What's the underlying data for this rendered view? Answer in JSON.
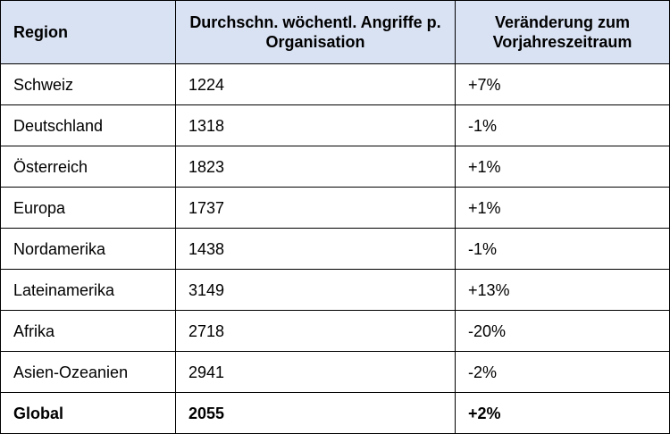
{
  "table": {
    "headers": {
      "region": "Region",
      "attacks": "Durchschn. wöchentl. Angriffe p. Organisation",
      "change": "Veränderung zum Vorjahreszeitraum"
    },
    "rows": [
      {
        "region": "Schweiz",
        "attacks": "1224",
        "change": "+7%"
      },
      {
        "region": "Deutschland",
        "attacks": "1318",
        "change": "-1%"
      },
      {
        "region": "Österreich",
        "attacks": "1823",
        "change": "+1%"
      },
      {
        "region": "Europa",
        "attacks": "1737",
        "change": "+1%"
      },
      {
        "region": "Nordamerika",
        "attacks": "1438",
        "change": "-1%"
      },
      {
        "region": "Lateinamerika",
        "attacks": "3149",
        "change": "+13%"
      },
      {
        "region": "Afrika",
        "attacks": "2718",
        "change": "-20%"
      },
      {
        "region": "Asien-Ozeanien",
        "attacks": "2941",
        "change": "-2%"
      }
    ],
    "total": {
      "region": "Global",
      "attacks": "2055",
      "change": "+2%"
    }
  },
  "colors": {
    "header_background": "#d9e2f3",
    "border": "#000000",
    "text": "#000000"
  }
}
